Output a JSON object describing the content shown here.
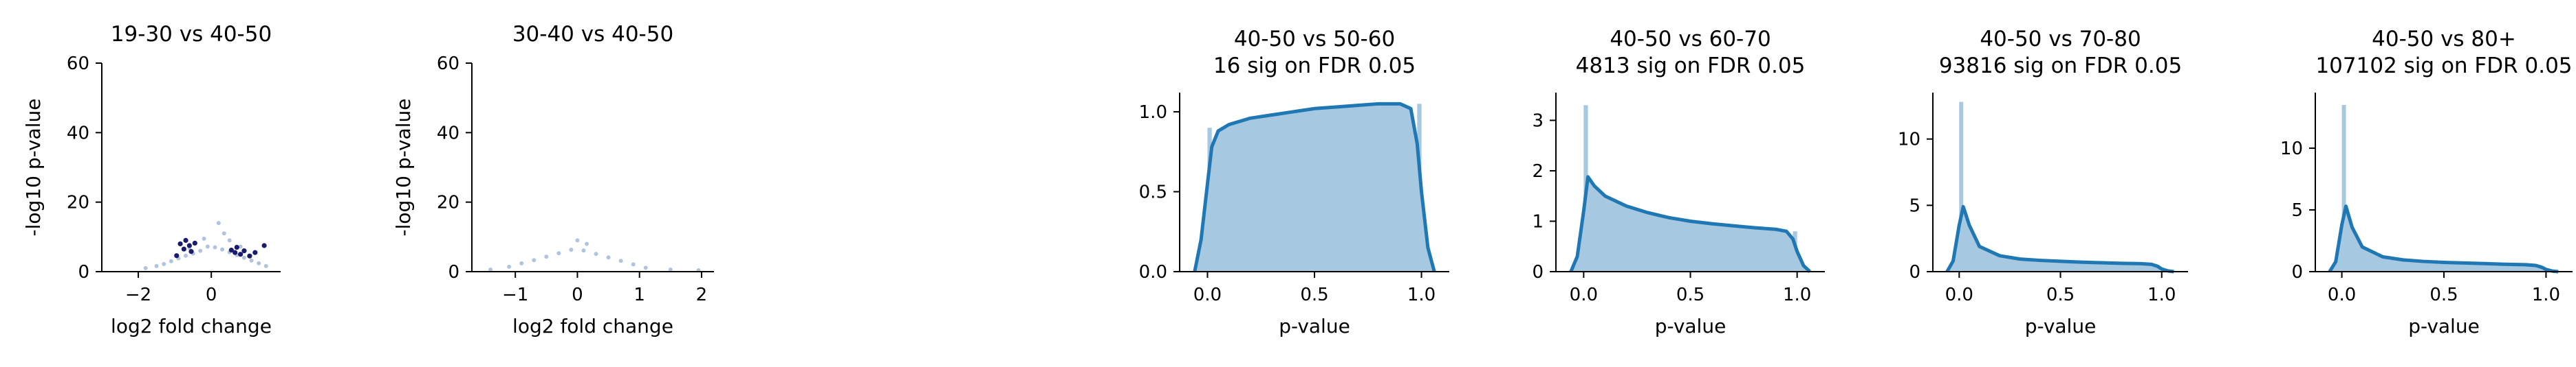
{
  "chart_data": [
    {
      "type": "scatter",
      "title": "19-30 vs 40-50",
      "xlabel": "log2 fold change",
      "ylabel": "-log10 p-value",
      "xlim": [
        -3.0,
        1.9
      ],
      "ylim": [
        0,
        60
      ],
      "xticks": [
        -2,
        0
      ],
      "xtick_labels": [
        "−2",
        "0"
      ],
      "yticks": [
        0,
        20,
        40,
        60
      ],
      "ytick_labels": [
        "0",
        "20",
        "40",
        "60"
      ],
      "series": [
        {
          "role": "background",
          "color": "#b0c4de",
          "points": [
            [
              -1.8,
              1.0
            ],
            [
              -1.5,
              1.6
            ],
            [
              -1.3,
              2.2
            ],
            [
              -1.1,
              3.0
            ],
            [
              -0.9,
              3.8
            ],
            [
              -0.7,
              4.6
            ],
            [
              -0.5,
              5.2
            ],
            [
              -0.3,
              6.0
            ],
            [
              -0.1,
              7.2
            ],
            [
              0.1,
              7.0
            ],
            [
              0.3,
              6.4
            ],
            [
              0.5,
              5.6
            ],
            [
              0.7,
              4.8
            ],
            [
              0.9,
              4.0
            ],
            [
              1.1,
              3.2
            ],
            [
              1.3,
              2.4
            ],
            [
              1.5,
              1.6
            ],
            [
              0.2,
              14.0
            ],
            [
              0.35,
              11.0
            ],
            [
              -0.2,
              9.5
            ],
            [
              0.5,
              9.0
            ],
            [
              -0.6,
              6.8
            ],
            [
              0.8,
              7.2
            ]
          ]
        },
        {
          "role": "significant",
          "color": "#1a1a6e",
          "points": [
            [
              -0.85,
              8.0
            ],
            [
              -0.75,
              6.5
            ],
            [
              -0.7,
              9.0
            ],
            [
              -0.6,
              7.5
            ],
            [
              -0.55,
              5.8
            ],
            [
              -0.45,
              8.2
            ],
            [
              -0.95,
              4.6
            ],
            [
              0.55,
              6.2
            ],
            [
              0.65,
              5.5
            ],
            [
              0.7,
              7.0
            ],
            [
              0.8,
              5.0
            ],
            [
              0.9,
              6.0
            ],
            [
              1.05,
              4.5
            ],
            [
              1.2,
              5.5
            ],
            [
              1.45,
              7.5
            ]
          ]
        }
      ]
    },
    {
      "type": "scatter",
      "title": "30-40 vs 40-50",
      "xlabel": "log2 fold change",
      "ylabel": "-log10 p-value",
      "xlim": [
        -1.7,
        2.2
      ],
      "ylim": [
        0,
        60
      ],
      "xticks": [
        -1,
        0,
        1,
        2
      ],
      "xtick_labels": [
        "−1",
        "0",
        "1",
        "2"
      ],
      "yticks": [
        0,
        20,
        40,
        60
      ],
      "ytick_labels": [
        "0",
        "20",
        "40",
        "60"
      ],
      "series": [
        {
          "role": "background",
          "color": "#b0c4de",
          "points": [
            [
              -1.4,
              0.6
            ],
            [
              -1.1,
              1.4
            ],
            [
              -0.9,
              2.4
            ],
            [
              -0.7,
              3.3
            ],
            [
              -0.5,
              4.3
            ],
            [
              -0.3,
              5.3
            ],
            [
              -0.1,
              6.3
            ],
            [
              0.1,
              6.1
            ],
            [
              0.3,
              5.1
            ],
            [
              0.5,
              4.1
            ],
            [
              0.7,
              3.1
            ],
            [
              0.9,
              2.1
            ],
            [
              1.1,
              1.1
            ],
            [
              1.5,
              0.6
            ],
            [
              1.95,
              0.4
            ],
            [
              0.0,
              9.0
            ],
            [
              0.15,
              8.0
            ]
          ]
        }
      ]
    },
    {
      "type": "area",
      "title": "40-50 vs 50-60",
      "subtitle": "16 sig on FDR 0.05",
      "xlabel": "p-value",
      "xlim": [
        -0.13,
        1.13
      ],
      "ylim": [
        0,
        1.12
      ],
      "xticks": [
        0.0,
        0.5,
        1.0
      ],
      "xtick_labels": [
        "0.0",
        "0.5",
        "1.0"
      ],
      "yticks": [
        0.0,
        0.5,
        1.0
      ],
      "ytick_labels": [
        "0.0",
        "0.5",
        "1.0"
      ],
      "bins": [
        [
          0.0,
          0.02,
          0.9
        ],
        [
          0.02,
          0.98,
          0.0
        ],
        [
          0.98,
          1.0,
          1.05
        ]
      ],
      "hist_color": "#a6c8e0",
      "kde_color": "#1f77b4",
      "kde": [
        [
          -0.06,
          0
        ],
        [
          -0.03,
          0.2
        ],
        [
          0.0,
          0.55
        ],
        [
          0.02,
          0.78
        ],
        [
          0.05,
          0.88
        ],
        [
          0.1,
          0.92
        ],
        [
          0.2,
          0.96
        ],
        [
          0.3,
          0.98
        ],
        [
          0.4,
          1.0
        ],
        [
          0.5,
          1.02
        ],
        [
          0.6,
          1.03
        ],
        [
          0.7,
          1.04
        ],
        [
          0.8,
          1.05
        ],
        [
          0.9,
          1.05
        ],
        [
          0.95,
          1.02
        ],
        [
          0.98,
          0.8
        ],
        [
          1.0,
          0.5
        ],
        [
          1.03,
          0.15
        ],
        [
          1.06,
          0
        ]
      ]
    },
    {
      "type": "area",
      "title": "40-50 vs 60-70",
      "subtitle": "4813 sig on FDR 0.05",
      "xlabel": "p-value",
      "xlim": [
        -0.13,
        1.13
      ],
      "ylim": [
        0,
        3.55
      ],
      "xticks": [
        0.0,
        0.5,
        1.0
      ],
      "xtick_labels": [
        "0.0",
        "0.5",
        "1.0"
      ],
      "yticks": [
        0,
        1,
        2,
        3
      ],
      "ytick_labels": [
        "0",
        "1",
        "2",
        "3"
      ],
      "bins": [
        [
          0.0,
          0.02,
          3.3
        ],
        [
          0.02,
          0.98,
          0.0
        ],
        [
          0.98,
          1.0,
          0.8
        ]
      ],
      "hist_color": "#a6c8e0",
      "kde_color": "#1f77b4",
      "kde": [
        [
          -0.06,
          0
        ],
        [
          -0.03,
          0.3
        ],
        [
          0.0,
          1.2
        ],
        [
          0.02,
          1.88
        ],
        [
          0.05,
          1.7
        ],
        [
          0.1,
          1.5
        ],
        [
          0.2,
          1.3
        ],
        [
          0.3,
          1.17
        ],
        [
          0.4,
          1.07
        ],
        [
          0.5,
          1.0
        ],
        [
          0.6,
          0.95
        ],
        [
          0.7,
          0.91
        ],
        [
          0.8,
          0.87
        ],
        [
          0.9,
          0.84
        ],
        [
          0.95,
          0.8
        ],
        [
          0.98,
          0.65
        ],
        [
          1.0,
          0.4
        ],
        [
          1.03,
          0.12
        ],
        [
          1.06,
          0
        ]
      ]
    },
    {
      "type": "area",
      "title": "40-50 vs 70-80",
      "subtitle": "93816 sig on FDR 0.05",
      "xlabel": "p-value",
      "xlim": [
        -0.13,
        1.13
      ],
      "ylim": [
        0,
        13.5
      ],
      "xticks": [
        0.0,
        0.5,
        1.0
      ],
      "xtick_labels": [
        "0.0",
        "0.5",
        "1.0"
      ],
      "yticks": [
        0,
        5,
        10
      ],
      "ytick_labels": [
        "0",
        "5",
        "10"
      ],
      "bins": [
        [
          0.0,
          0.02,
          12.8
        ],
        [
          0.02,
          0.98,
          0.0
        ],
        [
          0.98,
          1.0,
          0.3
        ]
      ],
      "hist_color": "#a6c8e0",
      "kde_color": "#1f77b4",
      "kde": [
        [
          -0.06,
          0
        ],
        [
          -0.03,
          0.8
        ],
        [
          0.0,
          3.5
        ],
        [
          0.02,
          4.9
        ],
        [
          0.05,
          3.5
        ],
        [
          0.1,
          1.9
        ],
        [
          0.2,
          1.2
        ],
        [
          0.3,
          0.95
        ],
        [
          0.4,
          0.85
        ],
        [
          0.5,
          0.78
        ],
        [
          0.6,
          0.72
        ],
        [
          0.7,
          0.67
        ],
        [
          0.8,
          0.63
        ],
        [
          0.9,
          0.6
        ],
        [
          0.95,
          0.55
        ],
        [
          0.98,
          0.4
        ],
        [
          1.0,
          0.2
        ],
        [
          1.03,
          0.06
        ],
        [
          1.06,
          0
        ]
      ]
    },
    {
      "type": "area",
      "title": "40-50 vs 80+",
      "subtitle": "107102 sig on FDR 0.05",
      "xlabel": "p-value",
      "xlim": [
        -0.13,
        1.13
      ],
      "ylim": [
        0,
        14.5
      ],
      "xticks": [
        0.0,
        0.5,
        1.0
      ],
      "xtick_labels": [
        "0.0",
        "0.5",
        "1.0"
      ],
      "yticks": [
        0,
        5,
        10
      ],
      "ytick_labels": [
        "0",
        "5",
        "10"
      ],
      "bins": [
        [
          0.0,
          0.02,
          13.5
        ],
        [
          0.02,
          0.98,
          0.0
        ],
        [
          0.98,
          1.0,
          0.2
        ]
      ],
      "hist_color": "#a6c8e0",
      "kde_color": "#1f77b4",
      "kde": [
        [
          -0.06,
          0
        ],
        [
          -0.03,
          0.8
        ],
        [
          0.0,
          3.8
        ],
        [
          0.02,
          5.3
        ],
        [
          0.05,
          3.6
        ],
        [
          0.1,
          2.0
        ],
        [
          0.2,
          1.2
        ],
        [
          0.3,
          0.95
        ],
        [
          0.4,
          0.83
        ],
        [
          0.5,
          0.75
        ],
        [
          0.6,
          0.7
        ],
        [
          0.7,
          0.65
        ],
        [
          0.8,
          0.6
        ],
        [
          0.9,
          0.56
        ],
        [
          0.95,
          0.5
        ],
        [
          0.98,
          0.35
        ],
        [
          1.0,
          0.18
        ],
        [
          1.03,
          0.05
        ],
        [
          1.06,
          0
        ]
      ]
    }
  ]
}
